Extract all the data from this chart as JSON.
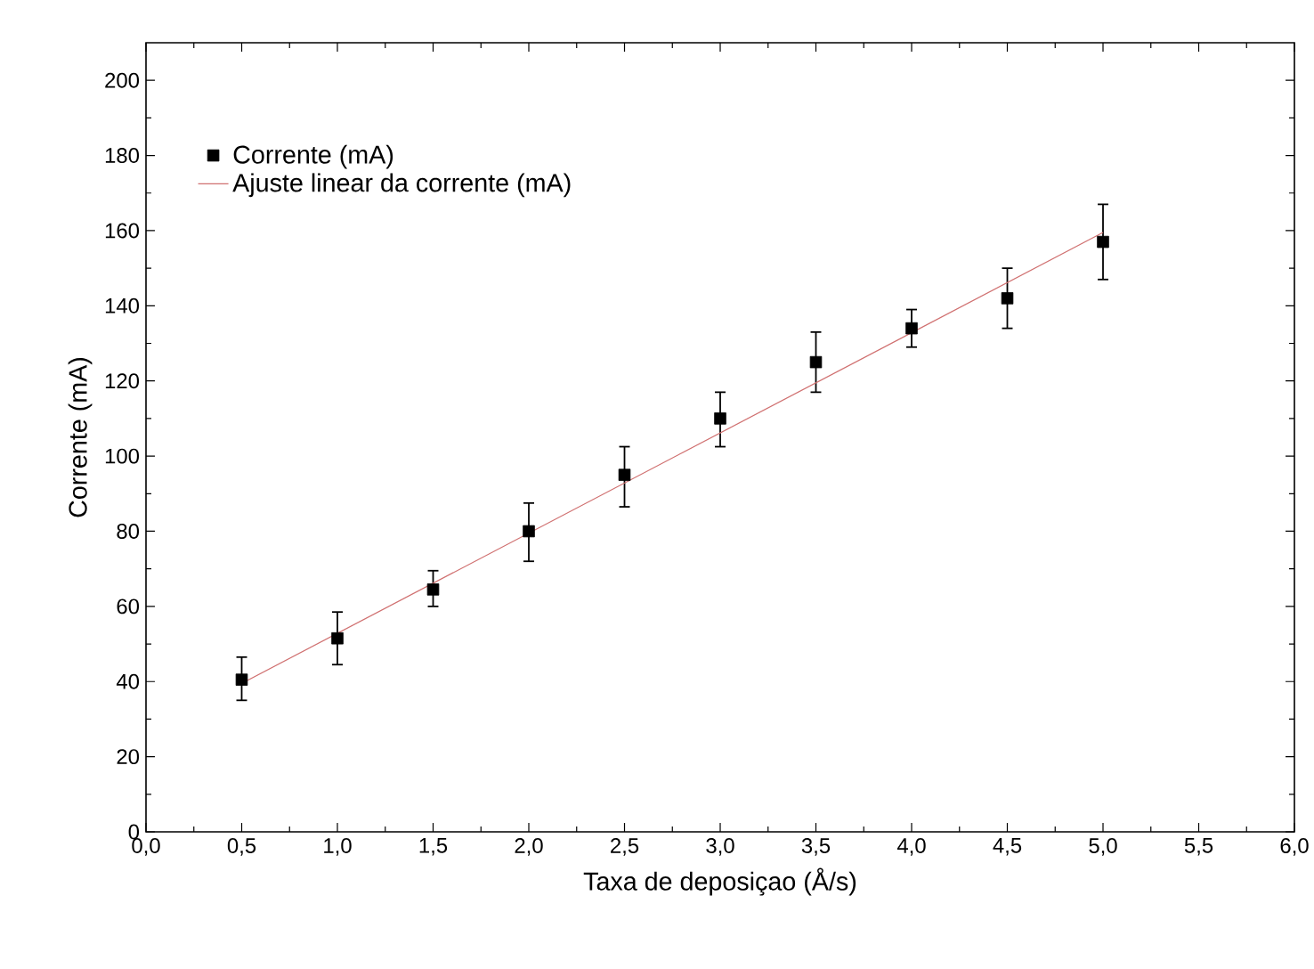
{
  "chart_data": {
    "type": "scatter",
    "xlabel": "Taxa de deposiçao (Å/s)",
    "ylabel": "Corrente (mA)",
    "xlim": [
      0,
      6
    ],
    "ylim": [
      0,
      210
    ],
    "xticks": [
      {
        "value": 0,
        "label": "0,0"
      },
      {
        "value": 0.5,
        "label": "0,5"
      },
      {
        "value": 1,
        "label": "1,0"
      },
      {
        "value": 1.5,
        "label": "1,5"
      },
      {
        "value": 2,
        "label": "2,0"
      },
      {
        "value": 2.5,
        "label": "2,5"
      },
      {
        "value": 3,
        "label": "3,0"
      },
      {
        "value": 3.5,
        "label": "3,5"
      },
      {
        "value": 4,
        "label": "4,0"
      },
      {
        "value": 4.5,
        "label": "4,5"
      },
      {
        "value": 5,
        "label": "5,0"
      },
      {
        "value": 5.5,
        "label": "5,5"
      },
      {
        "value": 6,
        "label": "6,0"
      }
    ],
    "yticks": [
      0,
      20,
      40,
      60,
      80,
      100,
      120,
      140,
      160,
      180,
      200
    ],
    "legend": "top left",
    "grid": false,
    "series": [
      {
        "name": "Corrente (mA)",
        "marker": "square",
        "color": "#000000",
        "x": [
          0.5,
          1,
          1.5,
          2,
          2.5,
          3,
          3.5,
          4,
          4.5,
          5
        ],
        "values": [
          40.5,
          51.5,
          64.5,
          80,
          95,
          110,
          125,
          134,
          142,
          157
        ],
        "errors": [
          [
            35,
            46.5
          ],
          [
            44.5,
            58.5
          ],
          [
            60,
            69.5
          ],
          [
            72,
            87.5
          ],
          [
            86.5,
            102.5
          ],
          [
            102.5,
            117
          ],
          [
            117,
            133
          ],
          [
            129,
            139
          ],
          [
            134,
            150
          ],
          [
            147,
            167
          ]
        ]
      },
      {
        "name": "Ajuste linear da corrente (mA)",
        "type": "line",
        "marker": "none",
        "line_style": "solid",
        "color": "#d07070",
        "x": [
          0.5,
          5
        ],
        "values": [
          39.5,
          159.5
        ]
      }
    ]
  }
}
